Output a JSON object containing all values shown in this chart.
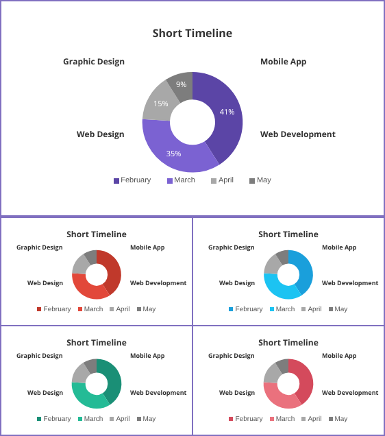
{
  "chart_data": [
    {
      "type": "donut",
      "title": "Short Timeline",
      "categories": [
        "February",
        "March",
        "April",
        "May"
      ],
      "values": [
        41,
        35,
        15,
        9
      ],
      "colors": [
        "#5b45a6",
        "#7b62d2",
        "#a8a8a8",
        "#7d7d7d"
      ],
      "value_labels": [
        "41%",
        "35%",
        "15%",
        "9%"
      ],
      "legend": "bottom",
      "annotations": [
        "Graphic Design",
        "Mobile App",
        "Web Design",
        "Web Development"
      ]
    },
    {
      "type": "donut",
      "title": "Short Timeline",
      "categories": [
        "February",
        "March",
        "April",
        "May"
      ],
      "values": [
        41,
        35,
        15,
        9
      ],
      "colors": [
        "#c0392b",
        "#e2483a",
        "#a8a8a8",
        "#7d7d7d"
      ],
      "legend": "bottom",
      "annotations": [
        "Graphic Design",
        "Mobile App",
        "Web Design",
        "Web Development"
      ]
    },
    {
      "type": "donut",
      "title": "Short Timeline",
      "categories": [
        "February",
        "March",
        "April",
        "May"
      ],
      "values": [
        41,
        35,
        15,
        9
      ],
      "colors": [
        "#1a9fdb",
        "#1cc3f2",
        "#a8a8a8",
        "#7d7d7d"
      ],
      "legend": "bottom",
      "annotations": [
        "Graphic Design",
        "Mobile App",
        "Web Design",
        "Web Development"
      ]
    },
    {
      "type": "donut",
      "title": "Short Timeline",
      "categories": [
        "February",
        "March",
        "April",
        "May"
      ],
      "values": [
        41,
        35,
        15,
        9
      ],
      "colors": [
        "#1a8f76",
        "#24bb96",
        "#a8a8a8",
        "#7d7d7d"
      ],
      "legend": "bottom",
      "annotations": [
        "Graphic Design",
        "Mobile App",
        "Web Design",
        "Web Development"
      ]
    },
    {
      "type": "donut",
      "title": "Short Timeline",
      "categories": [
        "February",
        "March",
        "April",
        "May"
      ],
      "values": [
        41,
        35,
        15,
        9
      ],
      "colors": [
        "#d44a5c",
        "#ea717d",
        "#a8a8a8",
        "#7d7d7d"
      ],
      "legend": "bottom",
      "annotations": [
        "Graphic Design",
        "Mobile App",
        "Web Design",
        "Web Development"
      ]
    }
  ]
}
